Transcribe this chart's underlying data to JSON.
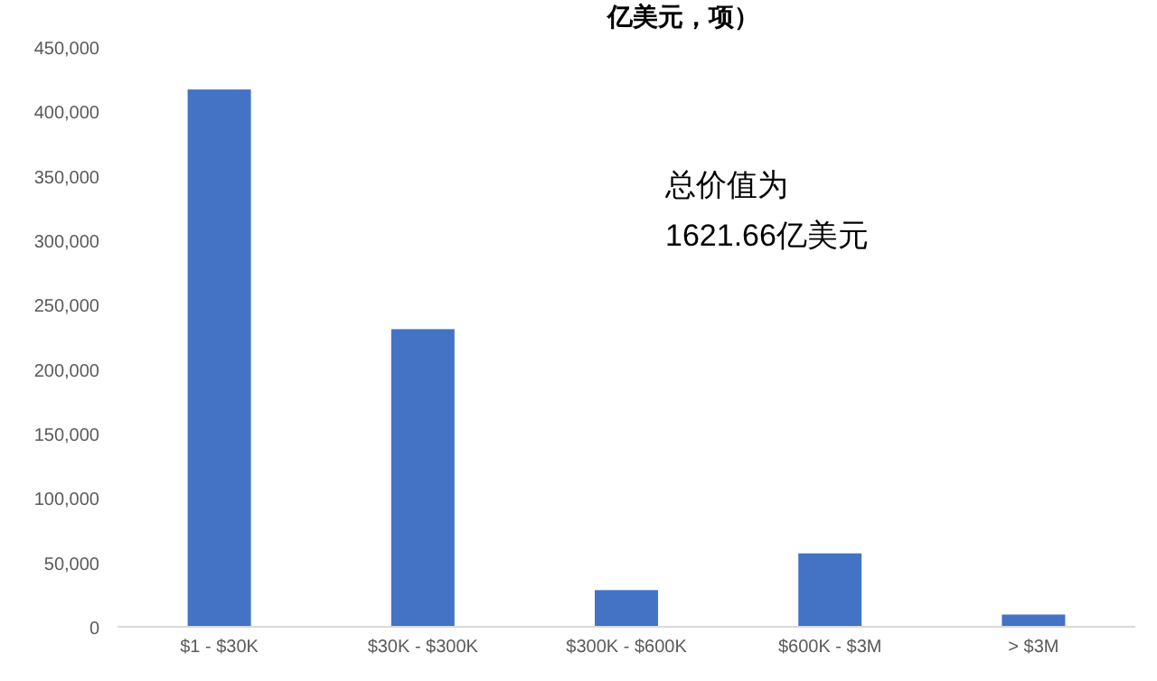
{
  "chart_data": {
    "type": "bar",
    "title": "亿美元，项）",
    "categories": [
      "$1 - $30K",
      "$30K - $300K",
      "$300K - $600K",
      "$600K - $3M",
      "> $3M"
    ],
    "values": [
      417000,
      231000,
      28500,
      57000,
      9500
    ],
    "color": "#4472c4",
    "ylim": [
      0,
      450000
    ],
    "yticks": [
      {
        "value": 0,
        "label": "0"
      },
      {
        "value": 50000,
        "label": "50,000"
      },
      {
        "value": 100000,
        "label": "100,000"
      },
      {
        "value": 150000,
        "label": "150,000"
      },
      {
        "value": 200000,
        "label": "200,000"
      },
      {
        "value": 250000,
        "label": "250,000"
      },
      {
        "value": 300000,
        "label": "300,000"
      },
      {
        "value": 350000,
        "label": "350,000"
      },
      {
        "value": 400000,
        "label": "400,000"
      },
      {
        "value": 450000,
        "label": "450,000"
      }
    ],
    "grid": false,
    "annotations": [
      "总价值为",
      "1621.66亿美元"
    ]
  }
}
